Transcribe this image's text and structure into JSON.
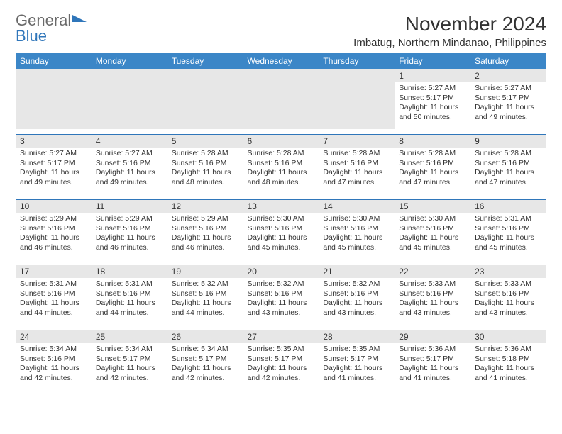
{
  "logo": {
    "line1": "General",
    "line2": "Blue"
  },
  "title": "November 2024",
  "subtitle": "Imbatug, Northern Mindanao, Philippines",
  "columns": [
    "Sunday",
    "Monday",
    "Tuesday",
    "Wednesday",
    "Thursday",
    "Friday",
    "Saturday"
  ],
  "colors": {
    "header_bg": "#3b86c7",
    "header_text": "#ffffff",
    "daynum_bg": "#e7e7e7",
    "border": "#2f76ba",
    "logo_gray": "#6a6a6a",
    "logo_blue": "#2f76ba",
    "text": "#333333",
    "background": "#ffffff"
  },
  "typography": {
    "title_fontsize": 28,
    "subtitle_fontsize": 15,
    "header_fontsize": 12,
    "daynum_fontsize": 12,
    "body_fontsize": 10.5
  },
  "weeks": [
    [
      null,
      null,
      null,
      null,
      null,
      {
        "n": "1",
        "sunrise": "Sunrise: 5:27 AM",
        "sunset": "Sunset: 5:17 PM",
        "day": "Daylight: 11 hours and 50 minutes."
      },
      {
        "n": "2",
        "sunrise": "Sunrise: 5:27 AM",
        "sunset": "Sunset: 5:17 PM",
        "day": "Daylight: 11 hours and 49 minutes."
      }
    ],
    [
      {
        "n": "3",
        "sunrise": "Sunrise: 5:27 AM",
        "sunset": "Sunset: 5:17 PM",
        "day": "Daylight: 11 hours and 49 minutes."
      },
      {
        "n": "4",
        "sunrise": "Sunrise: 5:27 AM",
        "sunset": "Sunset: 5:16 PM",
        "day": "Daylight: 11 hours and 49 minutes."
      },
      {
        "n": "5",
        "sunrise": "Sunrise: 5:28 AM",
        "sunset": "Sunset: 5:16 PM",
        "day": "Daylight: 11 hours and 48 minutes."
      },
      {
        "n": "6",
        "sunrise": "Sunrise: 5:28 AM",
        "sunset": "Sunset: 5:16 PM",
        "day": "Daylight: 11 hours and 48 minutes."
      },
      {
        "n": "7",
        "sunrise": "Sunrise: 5:28 AM",
        "sunset": "Sunset: 5:16 PM",
        "day": "Daylight: 11 hours and 47 minutes."
      },
      {
        "n": "8",
        "sunrise": "Sunrise: 5:28 AM",
        "sunset": "Sunset: 5:16 PM",
        "day": "Daylight: 11 hours and 47 minutes."
      },
      {
        "n": "9",
        "sunrise": "Sunrise: 5:28 AM",
        "sunset": "Sunset: 5:16 PM",
        "day": "Daylight: 11 hours and 47 minutes."
      }
    ],
    [
      {
        "n": "10",
        "sunrise": "Sunrise: 5:29 AM",
        "sunset": "Sunset: 5:16 PM",
        "day": "Daylight: 11 hours and 46 minutes."
      },
      {
        "n": "11",
        "sunrise": "Sunrise: 5:29 AM",
        "sunset": "Sunset: 5:16 PM",
        "day": "Daylight: 11 hours and 46 minutes."
      },
      {
        "n": "12",
        "sunrise": "Sunrise: 5:29 AM",
        "sunset": "Sunset: 5:16 PM",
        "day": "Daylight: 11 hours and 46 minutes."
      },
      {
        "n": "13",
        "sunrise": "Sunrise: 5:30 AM",
        "sunset": "Sunset: 5:16 PM",
        "day": "Daylight: 11 hours and 45 minutes."
      },
      {
        "n": "14",
        "sunrise": "Sunrise: 5:30 AM",
        "sunset": "Sunset: 5:16 PM",
        "day": "Daylight: 11 hours and 45 minutes."
      },
      {
        "n": "15",
        "sunrise": "Sunrise: 5:30 AM",
        "sunset": "Sunset: 5:16 PM",
        "day": "Daylight: 11 hours and 45 minutes."
      },
      {
        "n": "16",
        "sunrise": "Sunrise: 5:31 AM",
        "sunset": "Sunset: 5:16 PM",
        "day": "Daylight: 11 hours and 45 minutes."
      }
    ],
    [
      {
        "n": "17",
        "sunrise": "Sunrise: 5:31 AM",
        "sunset": "Sunset: 5:16 PM",
        "day": "Daylight: 11 hours and 44 minutes."
      },
      {
        "n": "18",
        "sunrise": "Sunrise: 5:31 AM",
        "sunset": "Sunset: 5:16 PM",
        "day": "Daylight: 11 hours and 44 minutes."
      },
      {
        "n": "19",
        "sunrise": "Sunrise: 5:32 AM",
        "sunset": "Sunset: 5:16 PM",
        "day": "Daylight: 11 hours and 44 minutes."
      },
      {
        "n": "20",
        "sunrise": "Sunrise: 5:32 AM",
        "sunset": "Sunset: 5:16 PM",
        "day": "Daylight: 11 hours and 43 minutes."
      },
      {
        "n": "21",
        "sunrise": "Sunrise: 5:32 AM",
        "sunset": "Sunset: 5:16 PM",
        "day": "Daylight: 11 hours and 43 minutes."
      },
      {
        "n": "22",
        "sunrise": "Sunrise: 5:33 AM",
        "sunset": "Sunset: 5:16 PM",
        "day": "Daylight: 11 hours and 43 minutes."
      },
      {
        "n": "23",
        "sunrise": "Sunrise: 5:33 AM",
        "sunset": "Sunset: 5:16 PM",
        "day": "Daylight: 11 hours and 43 minutes."
      }
    ],
    [
      {
        "n": "24",
        "sunrise": "Sunrise: 5:34 AM",
        "sunset": "Sunset: 5:16 PM",
        "day": "Daylight: 11 hours and 42 minutes."
      },
      {
        "n": "25",
        "sunrise": "Sunrise: 5:34 AM",
        "sunset": "Sunset: 5:17 PM",
        "day": "Daylight: 11 hours and 42 minutes."
      },
      {
        "n": "26",
        "sunrise": "Sunrise: 5:34 AM",
        "sunset": "Sunset: 5:17 PM",
        "day": "Daylight: 11 hours and 42 minutes."
      },
      {
        "n": "27",
        "sunrise": "Sunrise: 5:35 AM",
        "sunset": "Sunset: 5:17 PM",
        "day": "Daylight: 11 hours and 42 minutes."
      },
      {
        "n": "28",
        "sunrise": "Sunrise: 5:35 AM",
        "sunset": "Sunset: 5:17 PM",
        "day": "Daylight: 11 hours and 41 minutes."
      },
      {
        "n": "29",
        "sunrise": "Sunrise: 5:36 AM",
        "sunset": "Sunset: 5:17 PM",
        "day": "Daylight: 11 hours and 41 minutes."
      },
      {
        "n": "30",
        "sunrise": "Sunrise: 5:36 AM",
        "sunset": "Sunset: 5:18 PM",
        "day": "Daylight: 11 hours and 41 minutes."
      }
    ]
  ]
}
